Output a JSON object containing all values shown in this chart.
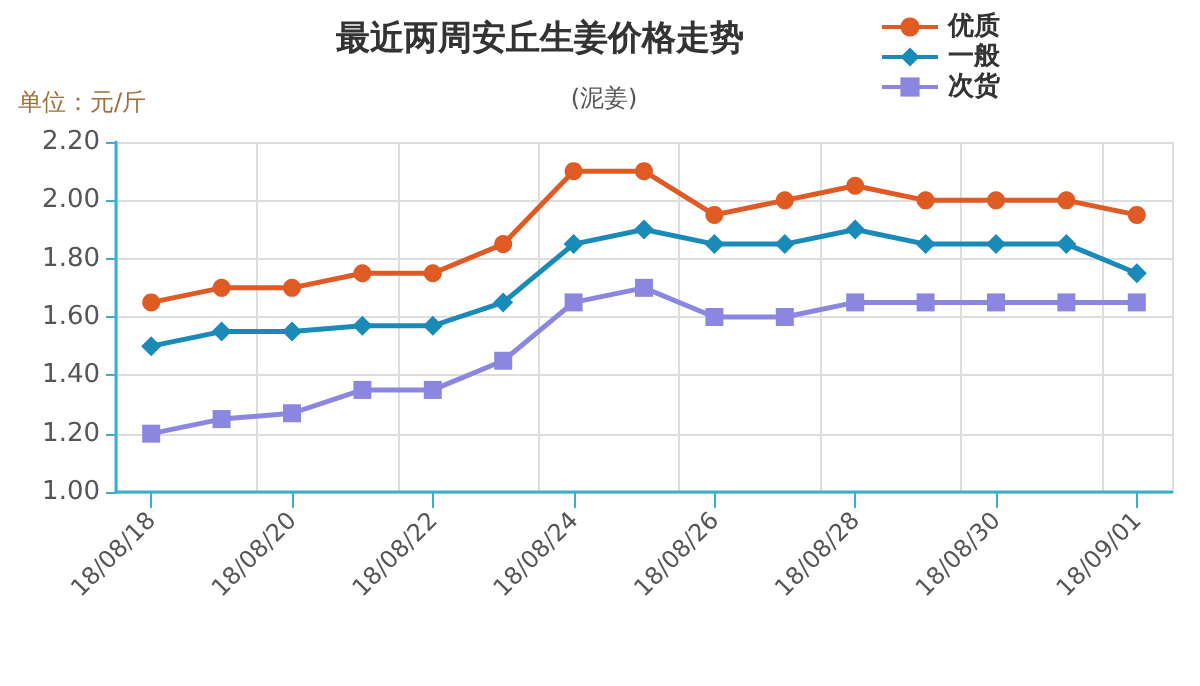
{
  "chart_data": {
    "type": "line",
    "title": "最近两周安丘生姜价格走势",
    "subtitle": "(泥姜)",
    "ylabel": "单位：元/斤",
    "categories": [
      "18/08/18",
      null,
      "18/08/20",
      null,
      "18/08/22",
      null,
      "18/08/24",
      null,
      "18/08/26",
      null,
      "18/08/28",
      null,
      "18/08/30",
      null,
      "18/09/01"
    ],
    "series": [
      {
        "name": "优质",
        "color": "#e05a24",
        "marker": "circle",
        "values": [
          1.65,
          1.7,
          1.7,
          1.75,
          1.75,
          1.85,
          2.1,
          2.1,
          1.95,
          2.0,
          2.05,
          2.0,
          2.0,
          2.0,
          1.95
        ]
      },
      {
        "name": "一般",
        "color": "#1a8ab8",
        "marker": "diamond",
        "values": [
          1.5,
          1.55,
          1.55,
          1.57,
          1.57,
          1.65,
          1.85,
          1.9,
          1.85,
          1.85,
          1.9,
          1.85,
          1.85,
          1.85,
          1.75
        ]
      },
      {
        "name": "次货",
        "color": "#8b87e0",
        "marker": "square",
        "values": [
          1.2,
          1.25,
          1.27,
          1.35,
          1.35,
          1.45,
          1.65,
          1.7,
          1.6,
          1.6,
          1.65,
          1.65,
          1.65,
          1.65,
          1.65
        ]
      }
    ],
    "ylim": [
      1.0,
      2.2
    ],
    "yticks": [
      {
        "value": 1.0,
        "label": "1.00"
      },
      {
        "value": 1.2,
        "label": "1.20"
      },
      {
        "value": 1.4,
        "label": "1.40"
      },
      {
        "value": 1.6,
        "label": "1.60"
      },
      {
        "value": 1.8,
        "label": "1.80"
      },
      {
        "value": 2.0,
        "label": "2.00"
      },
      {
        "value": 2.2,
        "label": "2.20"
      }
    ],
    "grid": true,
    "legend": "top right",
    "line_style": "solid"
  }
}
